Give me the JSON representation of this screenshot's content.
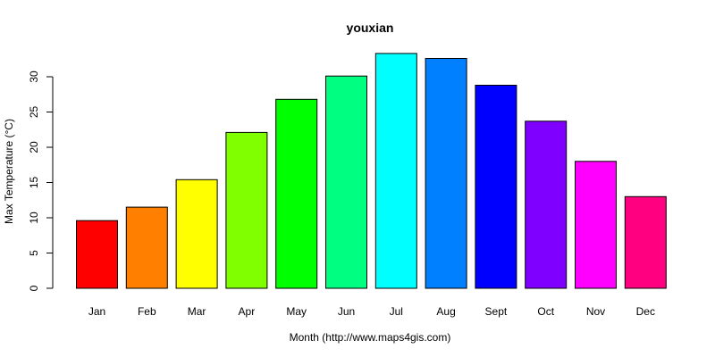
{
  "chart_data": {
    "type": "bar",
    "title": "youxian",
    "xlabel": "Month (http://www.maps4gis.com)",
    "ylabel": "Max Temperature (°C)",
    "categories": [
      "Jan",
      "Feb",
      "Mar",
      "Apr",
      "May",
      "Jun",
      "Jul",
      "Aug",
      "Sept",
      "Oct",
      "Nov",
      "Dec"
    ],
    "values": [
      9.6,
      11.5,
      15.4,
      22.1,
      26.8,
      30.1,
      33.3,
      32.6,
      28.8,
      23.7,
      18.0,
      13.0
    ],
    "colors": [
      "#FF0000",
      "#FF8000",
      "#FFFF00",
      "#80FF00",
      "#00FF00",
      "#00FF80",
      "#00FFFF",
      "#0080FF",
      "#0000FF",
      "#8000FF",
      "#FF00FF",
      "#FF0080"
    ],
    "yticks": [
      0,
      5,
      10,
      15,
      20,
      25,
      30
    ],
    "ylim": [
      0,
      34
    ],
    "grid": false,
    "legend": false
  }
}
